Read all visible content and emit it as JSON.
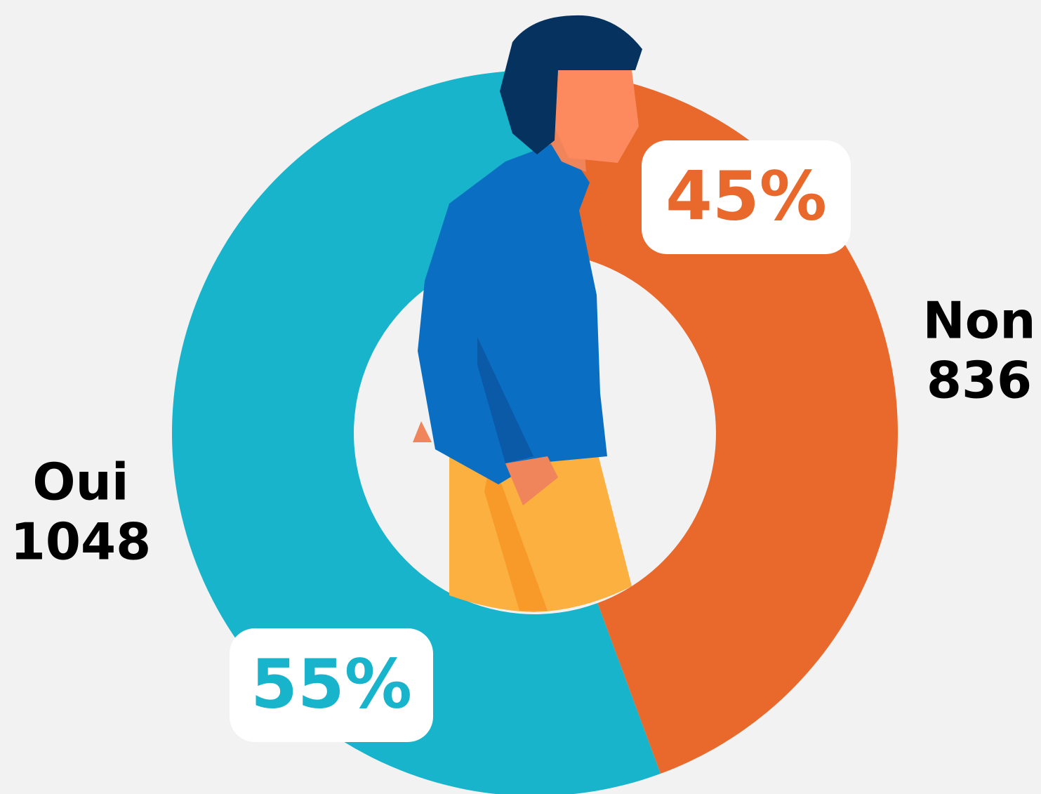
{
  "chart_data": {
    "type": "donut",
    "categories": [
      "Oui",
      "Non"
    ],
    "values": [
      1048,
      836
    ],
    "percent_labels": [
      "55%",
      "45%"
    ],
    "colors": [
      "#17b4cb",
      "#e8692b"
    ]
  }
}
